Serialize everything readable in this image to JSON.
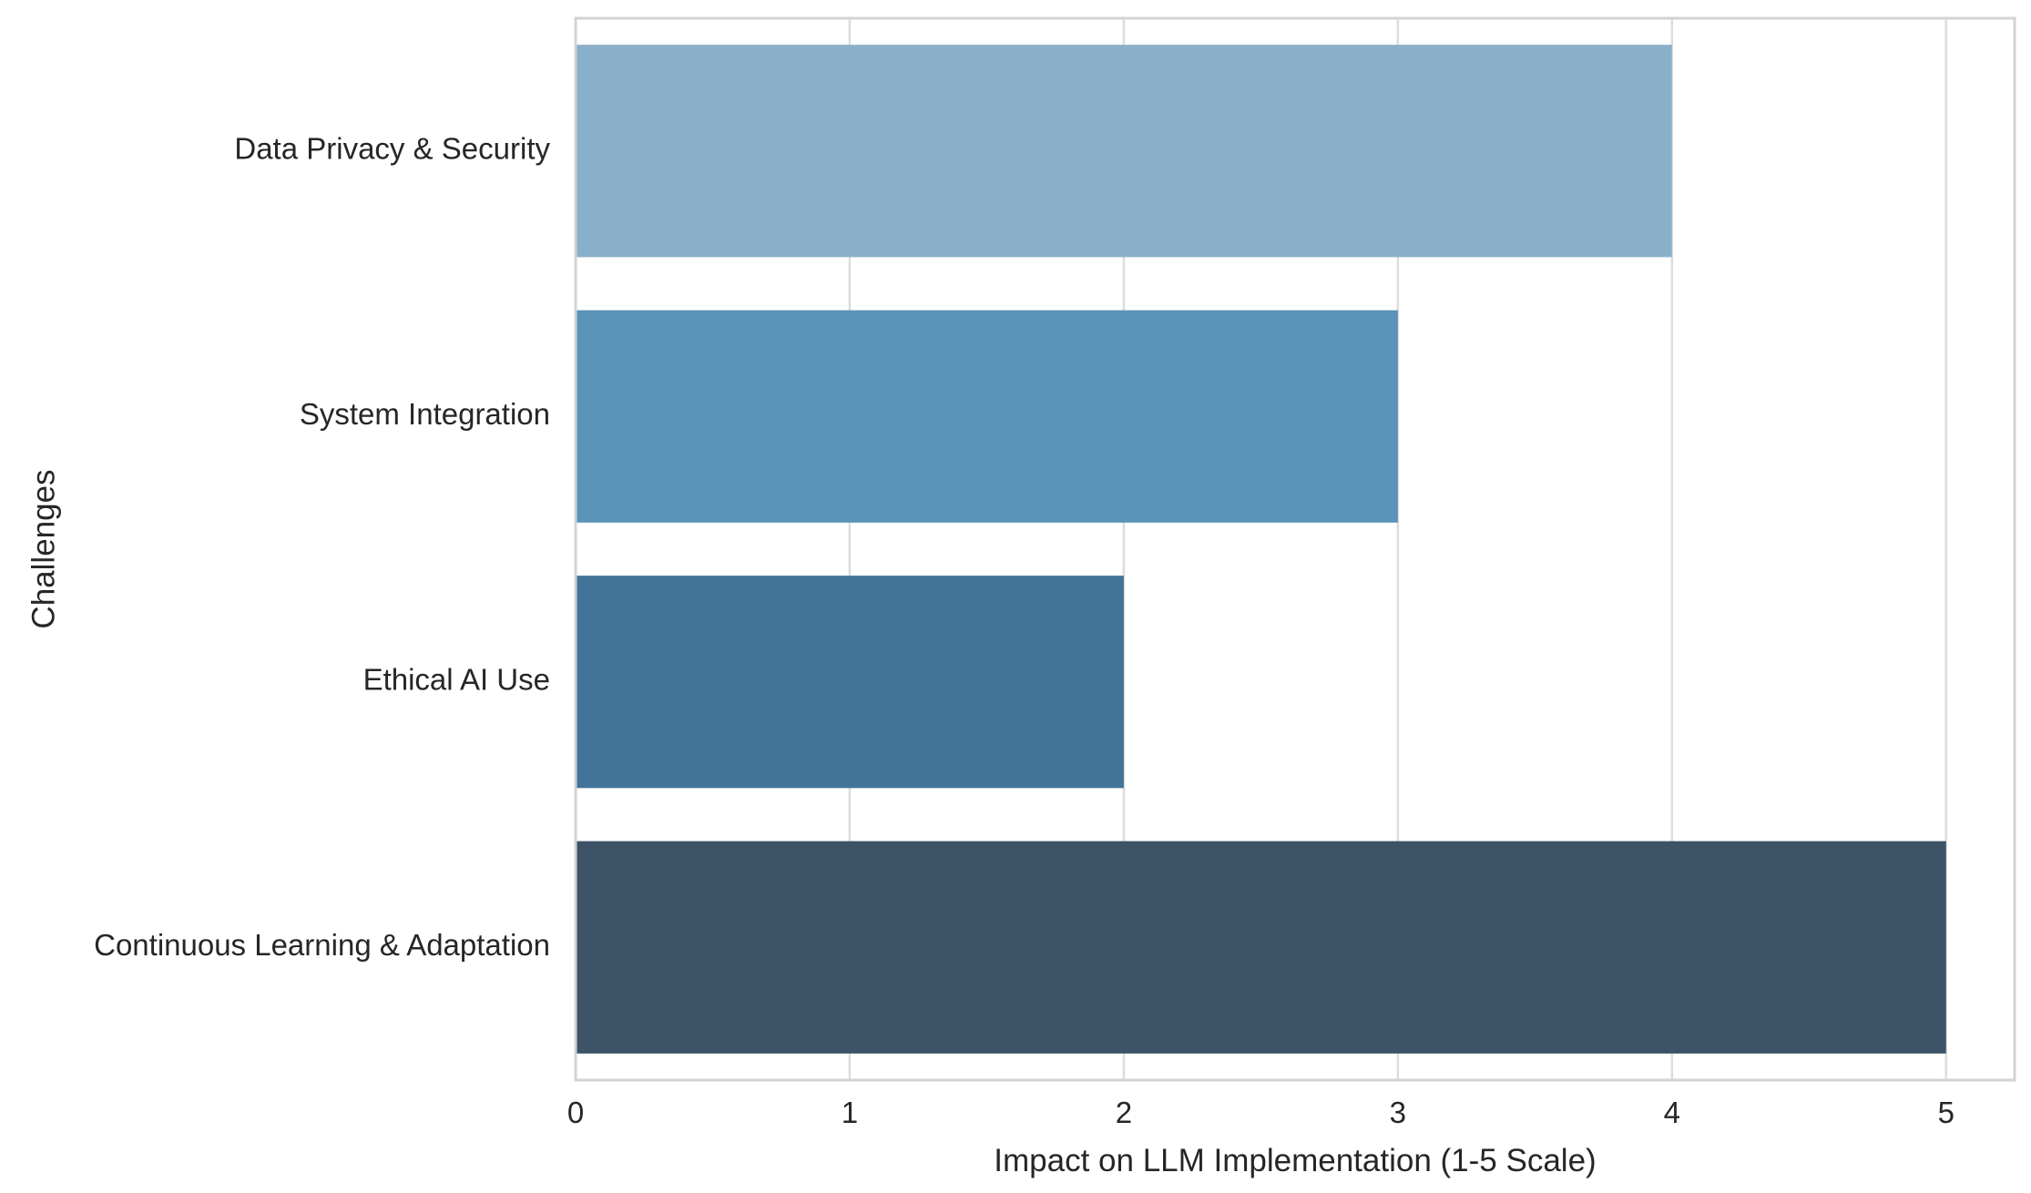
{
  "chart_data": {
    "type": "bar",
    "orientation": "horizontal",
    "title": "",
    "xlabel": "Impact on LLM Implementation (1-5 Scale)",
    "ylabel": "Challenges",
    "categories": [
      "Data Privacy & Security",
      "System Integration",
      "Ethical AI Use",
      "Continuous Learning & Adaptation"
    ],
    "values": [
      4,
      3,
      2,
      5
    ],
    "bar_colors": [
      "#8aafc9",
      "#5b93b9",
      "#417498",
      "#3d5367"
    ],
    "xlim": [
      0,
      5.25
    ],
    "xticks": [
      0,
      1,
      2,
      3,
      4,
      5
    ],
    "grid": true
  }
}
